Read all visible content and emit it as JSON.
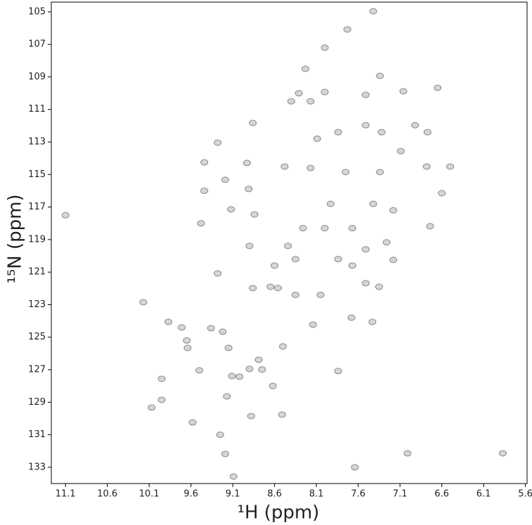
{
  "chart_data": {
    "type": "scatter",
    "xlabel": "¹H (ppm)",
    "ylabel": "¹⁵N (ppm)",
    "color": "#8a8a8a",
    "xlim": [
      11.27,
      5.58
    ],
    "ylim": [
      104.4,
      134.0
    ],
    "xticks": [
      11.1,
      10.6,
      10.1,
      9.6,
      9.1,
      8.6,
      8.1,
      7.6,
      7.1,
      6.6,
      6.1,
      5.6
    ],
    "yticks": [
      105,
      107,
      109,
      111,
      113,
      115,
      117,
      119,
      121,
      123,
      125,
      127,
      129,
      131,
      133
    ],
    "x": [
      11.1,
      10.17,
      10.07,
      9.95,
      9.95,
      9.87,
      9.71,
      9.65,
      9.64,
      9.58,
      9.5,
      9.48,
      9.44,
      9.44,
      9.36,
      9.28,
      9.28,
      9.25,
      9.22,
      9.19,
      9.19,
      9.17,
      9.15,
      9.12,
      9.11,
      9.09,
      9.02,
      8.93,
      8.91,
      8.9,
      8.9,
      8.88,
      8.86,
      8.86,
      8.84,
      8.79,
      8.75,
      8.65,
      8.62,
      8.51,
      8.5,
      8.48,
      8.44,
      8.31,
      8.23,
      8.14,
      8.0,
      8.0,
      7.84,
      7.84,
      7.73,
      7.68,
      7.64,
      7.42,
      7.51,
      7.34,
      7.06,
      7.01,
      6.78,
      6.74,
      6.5,
      6.6,
      6.65,
      6.77,
      7.32,
      5.87,
      7.43,
      7.18,
      7.26,
      7.51,
      7.51,
      7.35,
      8.35,
      8.05,
      8.56,
      8.26,
      8.0,
      7.67,
      7.93,
      7.42,
      7.18,
      8.17,
      7.75,
      7.34,
      7.09,
      8.09,
      7.51,
      6.92,
      8.35,
      7.84,
      7.67,
      8.6,
      8.17,
      8.4
    ],
    "values": [
      117.5,
      122.85,
      129.33,
      128.85,
      127.56,
      124.06,
      124.4,
      125.2,
      125.66,
      130.24,
      127.04,
      118.0,
      116.0,
      114.25,
      124.45,
      113.04,
      121.08,
      131.0,
      124.66,
      132.18,
      115.32,
      128.64,
      125.66,
      117.14,
      127.39,
      133.57,
      127.43,
      114.29,
      115.89,
      119.39,
      126.95,
      129.85,
      111.83,
      121.98,
      117.45,
      126.39,
      126.99,
      121.9,
      128.0,
      129.76,
      125.57,
      114.51,
      119.39,
      110.0,
      108.5,
      124.23,
      107.2,
      109.93,
      112.4,
      127.08,
      106.08,
      123.8,
      133.0,
      104.96,
      110.1,
      108.93,
      109.88,
      132.14,
      114.51,
      118.18,
      114.51,
      116.15,
      109.67,
      112.4,
      112.4,
      132.14,
      124.06,
      120.25,
      119.17,
      119.6,
      121.68,
      121.9,
      122.4,
      122.4,
      121.98,
      118.3,
      118.3,
      118.3,
      116.8,
      116.8,
      117.2,
      114.6,
      114.85,
      114.85,
      113.56,
      112.8,
      111.97,
      111.97,
      120.2,
      120.2,
      120.6,
      120.6,
      110.5,
      110.5
    ]
  }
}
